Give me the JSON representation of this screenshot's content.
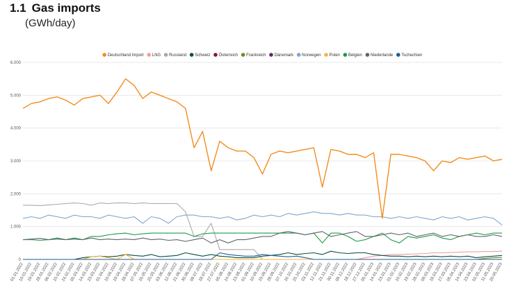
{
  "header": {
    "number": "1.1",
    "title": "Gas imports",
    "unit": "(GWh/day)"
  },
  "chart_data": {
    "type": "line",
    "title": "Gas imports",
    "ylabel": "GWh/day",
    "ylim": [
      0,
      6000
    ],
    "y_ticks": [
      "0",
      "1.000",
      "2.000",
      "3.000",
      "4.000",
      "5.000",
      "6.000"
    ],
    "legend_position": "top",
    "grid": true,
    "x": [
      "01.01.2022",
      "10.01.2022",
      "19.01.2022",
      "28.01.2022",
      "06.02.2022",
      "15.02.2022",
      "24.02.2022",
      "05.03.2022",
      "14.03.2022",
      "23.03.2022",
      "01.04.2022",
      "10.04.2022",
      "19.04.2022",
      "28.04.2022",
      "07.05.2022",
      "16.05.2022",
      "25.05.2022",
      "03.06.2022",
      "12.06.2022",
      "21.06.2022",
      "30.06.2022",
      "09.07.2022",
      "18.07.2022",
      "27.07.2022",
      "05.08.2022",
      "14.08.2022",
      "23.08.2022",
      "01.09.2022",
      "10.09.2022",
      "19.09.2022",
      "28.09.2022",
      "07.10.2022",
      "16.10.2022",
      "25.10.2022",
      "03.11.2022",
      "12.11.2022",
      "21.11.2022",
      "30.11.2022",
      "09.12.2022",
      "18.12.2022",
      "27.12.2022",
      "05.01.2023",
      "14.01.2023",
      "23.01.2023",
      "01.02.2023",
      "10.02.2023",
      "19.02.2023",
      "28.02.2023",
      "09.03.2023",
      "18.03.2023",
      "27.03.2023",
      "05.04.2023",
      "14.04.2023",
      "23.04.2023",
      "02.05.2023",
      "11.05.2023",
      "20.05.2023"
    ],
    "series": [
      {
        "name": "Deutschland Import",
        "color": "#f28c1e",
        "values": [
          4600,
          4750,
          4800,
          4900,
          4950,
          4850,
          4700,
          4900,
          4950,
          5000,
          4750,
          5100,
          5500,
          5300,
          4900,
          5100,
          5000,
          4900,
          4800,
          4600,
          3400,
          3900,
          2700,
          3600,
          3400,
          3300,
          3300,
          3100,
          2600,
          3200,
          3300,
          3250,
          3300,
          3350,
          3400,
          2200,
          3350,
          3300,
          3200,
          3200,
          3100,
          3250,
          1250,
          3200,
          3200,
          3150,
          3100,
          3000,
          2700,
          3000,
          2950,
          3100,
          3050,
          3100,
          3150,
          3000,
          3050
        ]
      },
      {
        "name": "LNG",
        "color": "#f29c9c",
        "values": [
          0,
          0,
          0,
          0,
          0,
          0,
          0,
          0,
          0,
          0,
          0,
          0,
          0,
          0,
          0,
          0,
          0,
          0,
          0,
          0,
          0,
          0,
          0,
          0,
          0,
          0,
          0,
          0,
          0,
          0,
          0,
          0,
          0,
          0,
          0,
          0,
          0,
          0,
          0,
          0,
          50,
          100,
          120,
          150,
          150,
          160,
          170,
          180,
          200,
          200,
          210,
          220,
          230,
          230,
          240,
          240,
          250
        ]
      },
      {
        "name": "Russland",
        "color": "#a7a9ac",
        "values": [
          1650,
          1650,
          1640,
          1660,
          1680,
          1700,
          1720,
          1700,
          1650,
          1720,
          1700,
          1720,
          1720,
          1700,
          1720,
          1700,
          1700,
          1700,
          1700,
          1450,
          700,
          700,
          1100,
          300,
          300,
          300,
          300,
          300,
          0,
          0,
          0,
          0,
          0,
          0,
          0,
          0,
          0,
          0,
          0,
          0,
          0,
          0,
          0,
          0,
          0,
          0,
          0,
          0,
          0,
          0,
          0,
          0,
          0,
          0,
          0,
          0,
          0
        ]
      },
      {
        "name": "Schweiz",
        "color": "#0b4f3c",
        "values": [
          0,
          0,
          0,
          0,
          0,
          0,
          0,
          50,
          80,
          100,
          80,
          100,
          150,
          120,
          100,
          150,
          80,
          100,
          120,
          200,
          150,
          100,
          150,
          100,
          80,
          50,
          50,
          50,
          100,
          120,
          150,
          200,
          150,
          180,
          200,
          150,
          250,
          200,
          180,
          200,
          200,
          150,
          120,
          100,
          100,
          80,
          100,
          80,
          100,
          80,
          100,
          80,
          100,
          50,
          80,
          100,
          120
        ]
      },
      {
        "name": "Österreich",
        "color": "#7a1f2b",
        "values": [
          0,
          0,
          0,
          0,
          0,
          0,
          0,
          0,
          0,
          0,
          0,
          0,
          0,
          0,
          0,
          0,
          0,
          0,
          0,
          0,
          0,
          0,
          0,
          0,
          0,
          0,
          0,
          0,
          0,
          0,
          0,
          0,
          0,
          0,
          0,
          0,
          0,
          0,
          0,
          0,
          0,
          0,
          0,
          0,
          0,
          0,
          0,
          0,
          0,
          0,
          0,
          0,
          0,
          0,
          0,
          0,
          0
        ]
      },
      {
        "name": "Frankreich",
        "color": "#6a8e2b",
        "values": [
          0,
          0,
          0,
          0,
          0,
          0,
          0,
          0,
          0,
          0,
          0,
          0,
          0,
          0,
          0,
          0,
          0,
          0,
          0,
          0,
          0,
          0,
          0,
          0,
          0,
          0,
          0,
          0,
          0,
          0,
          0,
          0,
          0,
          0,
          0,
          0,
          0,
          0,
          0,
          0,
          0,
          0,
          0,
          0,
          0,
          0,
          0,
          0,
          0,
          0,
          0,
          0,
          0,
          0,
          30,
          50,
          60
        ]
      },
      {
        "name": "Dänemark",
        "color": "#5a2a6b",
        "values": [
          0,
          0,
          0,
          0,
          0,
          0,
          0,
          0,
          0,
          0,
          0,
          0,
          0,
          0,
          0,
          0,
          0,
          0,
          0,
          0,
          0,
          0,
          0,
          0,
          0,
          0,
          0,
          0,
          0,
          0,
          0,
          0,
          0,
          0,
          0,
          0,
          0,
          0,
          0,
          0,
          0,
          0,
          0,
          0,
          0,
          0,
          0,
          0,
          0,
          0,
          0,
          0,
          0,
          0,
          0,
          0,
          0
        ]
      },
      {
        "name": "Norwegen",
        "color": "#7ea6cf",
        "values": [
          1250,
          1300,
          1250,
          1350,
          1300,
          1250,
          1350,
          1300,
          1300,
          1250,
          1350,
          1300,
          1250,
          1300,
          1100,
          1300,
          1250,
          1100,
          1300,
          1350,
          1350,
          1300,
          1300,
          1250,
          1300,
          1200,
          1250,
          1350,
          1300,
          1350,
          1300,
          1400,
          1350,
          1400,
          1450,
          1400,
          1400,
          1350,
          1400,
          1350,
          1350,
          1300,
          1300,
          1250,
          1300,
          1250,
          1300,
          1250,
          1200,
          1300,
          1250,
          1300,
          1200,
          1250,
          1300,
          1250,
          1050
        ]
      },
      {
        "name": "Polen",
        "color": "#f5b73a",
        "values": [
          0,
          0,
          0,
          0,
          0,
          0,
          0,
          0,
          80,
          100,
          50,
          0,
          150,
          0,
          0,
          0,
          0,
          0,
          0,
          0,
          0,
          0,
          0,
          0,
          0,
          0,
          0,
          0,
          0,
          0,
          0,
          0,
          0,
          0,
          0,
          0,
          0,
          0,
          0,
          0,
          0,
          0,
          0,
          0,
          0,
          0,
          0,
          0,
          0,
          0,
          0,
          0,
          0,
          0,
          0,
          0,
          0
        ]
      },
      {
        "name": "Belgien",
        "color": "#1a9a48",
        "values": [
          600,
          600,
          580,
          600,
          620,
          600,
          650,
          600,
          700,
          700,
          750,
          780,
          800,
          750,
          780,
          800,
          800,
          800,
          800,
          800,
          700,
          780,
          800,
          800,
          800,
          800,
          800,
          800,
          800,
          800,
          800,
          800,
          800,
          750,
          800,
          500,
          800,
          800,
          700,
          550,
          600,
          700,
          800,
          600,
          500,
          700,
          650,
          700,
          750,
          650,
          600,
          700,
          750,
          800,
          750,
          800,
          800
        ]
      },
      {
        "name": "Niederlande",
        "color": "#5f6368",
        "values": [
          600,
          620,
          640,
          600,
          650,
          600,
          620,
          600,
          650,
          600,
          620,
          600,
          620,
          600,
          650,
          600,
          620,
          580,
          600,
          550,
          600,
          650,
          500,
          600,
          500,
          600,
          600,
          650,
          700,
          700,
          800,
          850,
          800,
          750,
          800,
          850,
          700,
          750,
          800,
          850,
          700,
          700,
          750,
          800,
          750,
          800,
          700,
          750,
          800,
          700,
          750,
          700,
          750,
          700,
          700,
          750,
          700
        ]
      },
      {
        "name": "Tschechien",
        "color": "#1f5a96",
        "values": [
          0,
          0,
          0,
          0,
          0,
          0,
          0,
          0,
          0,
          0,
          0,
          0,
          0,
          0,
          0,
          0,
          0,
          0,
          0,
          0,
          0,
          0,
          0,
          200,
          150,
          120,
          100,
          100,
          150,
          120,
          100,
          80,
          100,
          50,
          0,
          0,
          0,
          0,
          0,
          0,
          0,
          0,
          0,
          0,
          0,
          0,
          0,
          0,
          0,
          0,
          0,
          0,
          0,
          0,
          0,
          0,
          0
        ]
      }
    ]
  }
}
